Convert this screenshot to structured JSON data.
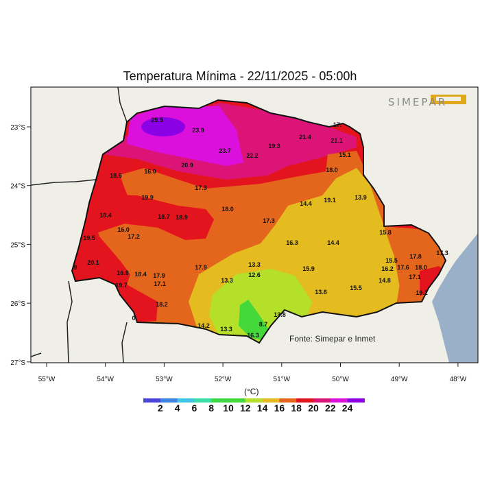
{
  "title": "Temperatura Mínima - 22/11/2025 - 05:00h",
  "source": "Fonte: Simepar e Inmet",
  "logo_text": "SIMEPAR",
  "unit": "(°C)",
  "lon_ticks": [
    "55°W",
    "54°W",
    "53°W",
    "52°W",
    "51°W",
    "50°W",
    "49°W",
    "48°W"
  ],
  "lat_ticks": [
    "23°S",
    "24°S",
    "25°S",
    "26°S",
    "27°S"
  ],
  "legend": {
    "labels": [
      "2",
      "4",
      "6",
      "8",
      "10",
      "12",
      "14",
      "16",
      "18",
      "20",
      "22",
      "24"
    ],
    "colors": [
      "#4a44d8",
      "#3f82e0",
      "#3ec8e4",
      "#38e0a8",
      "#3ed846",
      "#44d83a",
      "#b4e02a",
      "#e4bc20",
      "#e4661c",
      "#e4141e",
      "#dc1478",
      "#dc10dc",
      "#8c00e6"
    ]
  },
  "map_colors": {
    "land": "#efefe8",
    "ocean": "#9ab0c8"
  },
  "stations": [
    "25.5",
    "23.9",
    "23.7",
    "22.2",
    "20.9",
    "19.3",
    "21.4",
    "21.1",
    "17.",
    "15.1",
    "18.0",
    "16.0",
    "18.6",
    "17.3",
    "19.9",
    "18.0",
    "18.7",
    "18.9",
    "18.4",
    "17.3",
    "14.4",
    "19.1",
    "13.9",
    "16.0",
    "17.2",
    "19.5",
    "15.8",
    "16.3",
    "14.4",
    "20.1",
    "9",
    "15.5",
    "16.2",
    "17.6",
    "18.0",
    "17.8",
    "17.3",
    "17.1",
    "16.8",
    "18.4",
    "17.9",
    "17.1",
    "17.9",
    "13.3",
    "12.6",
    "15.9",
    "13.3",
    "19.7",
    "18.2",
    "13.8",
    "15.5",
    "14.8",
    "19.2",
    "13.8",
    "14.2",
    "13.3",
    "8.7",
    "16.3",
    "0"
  ]
}
